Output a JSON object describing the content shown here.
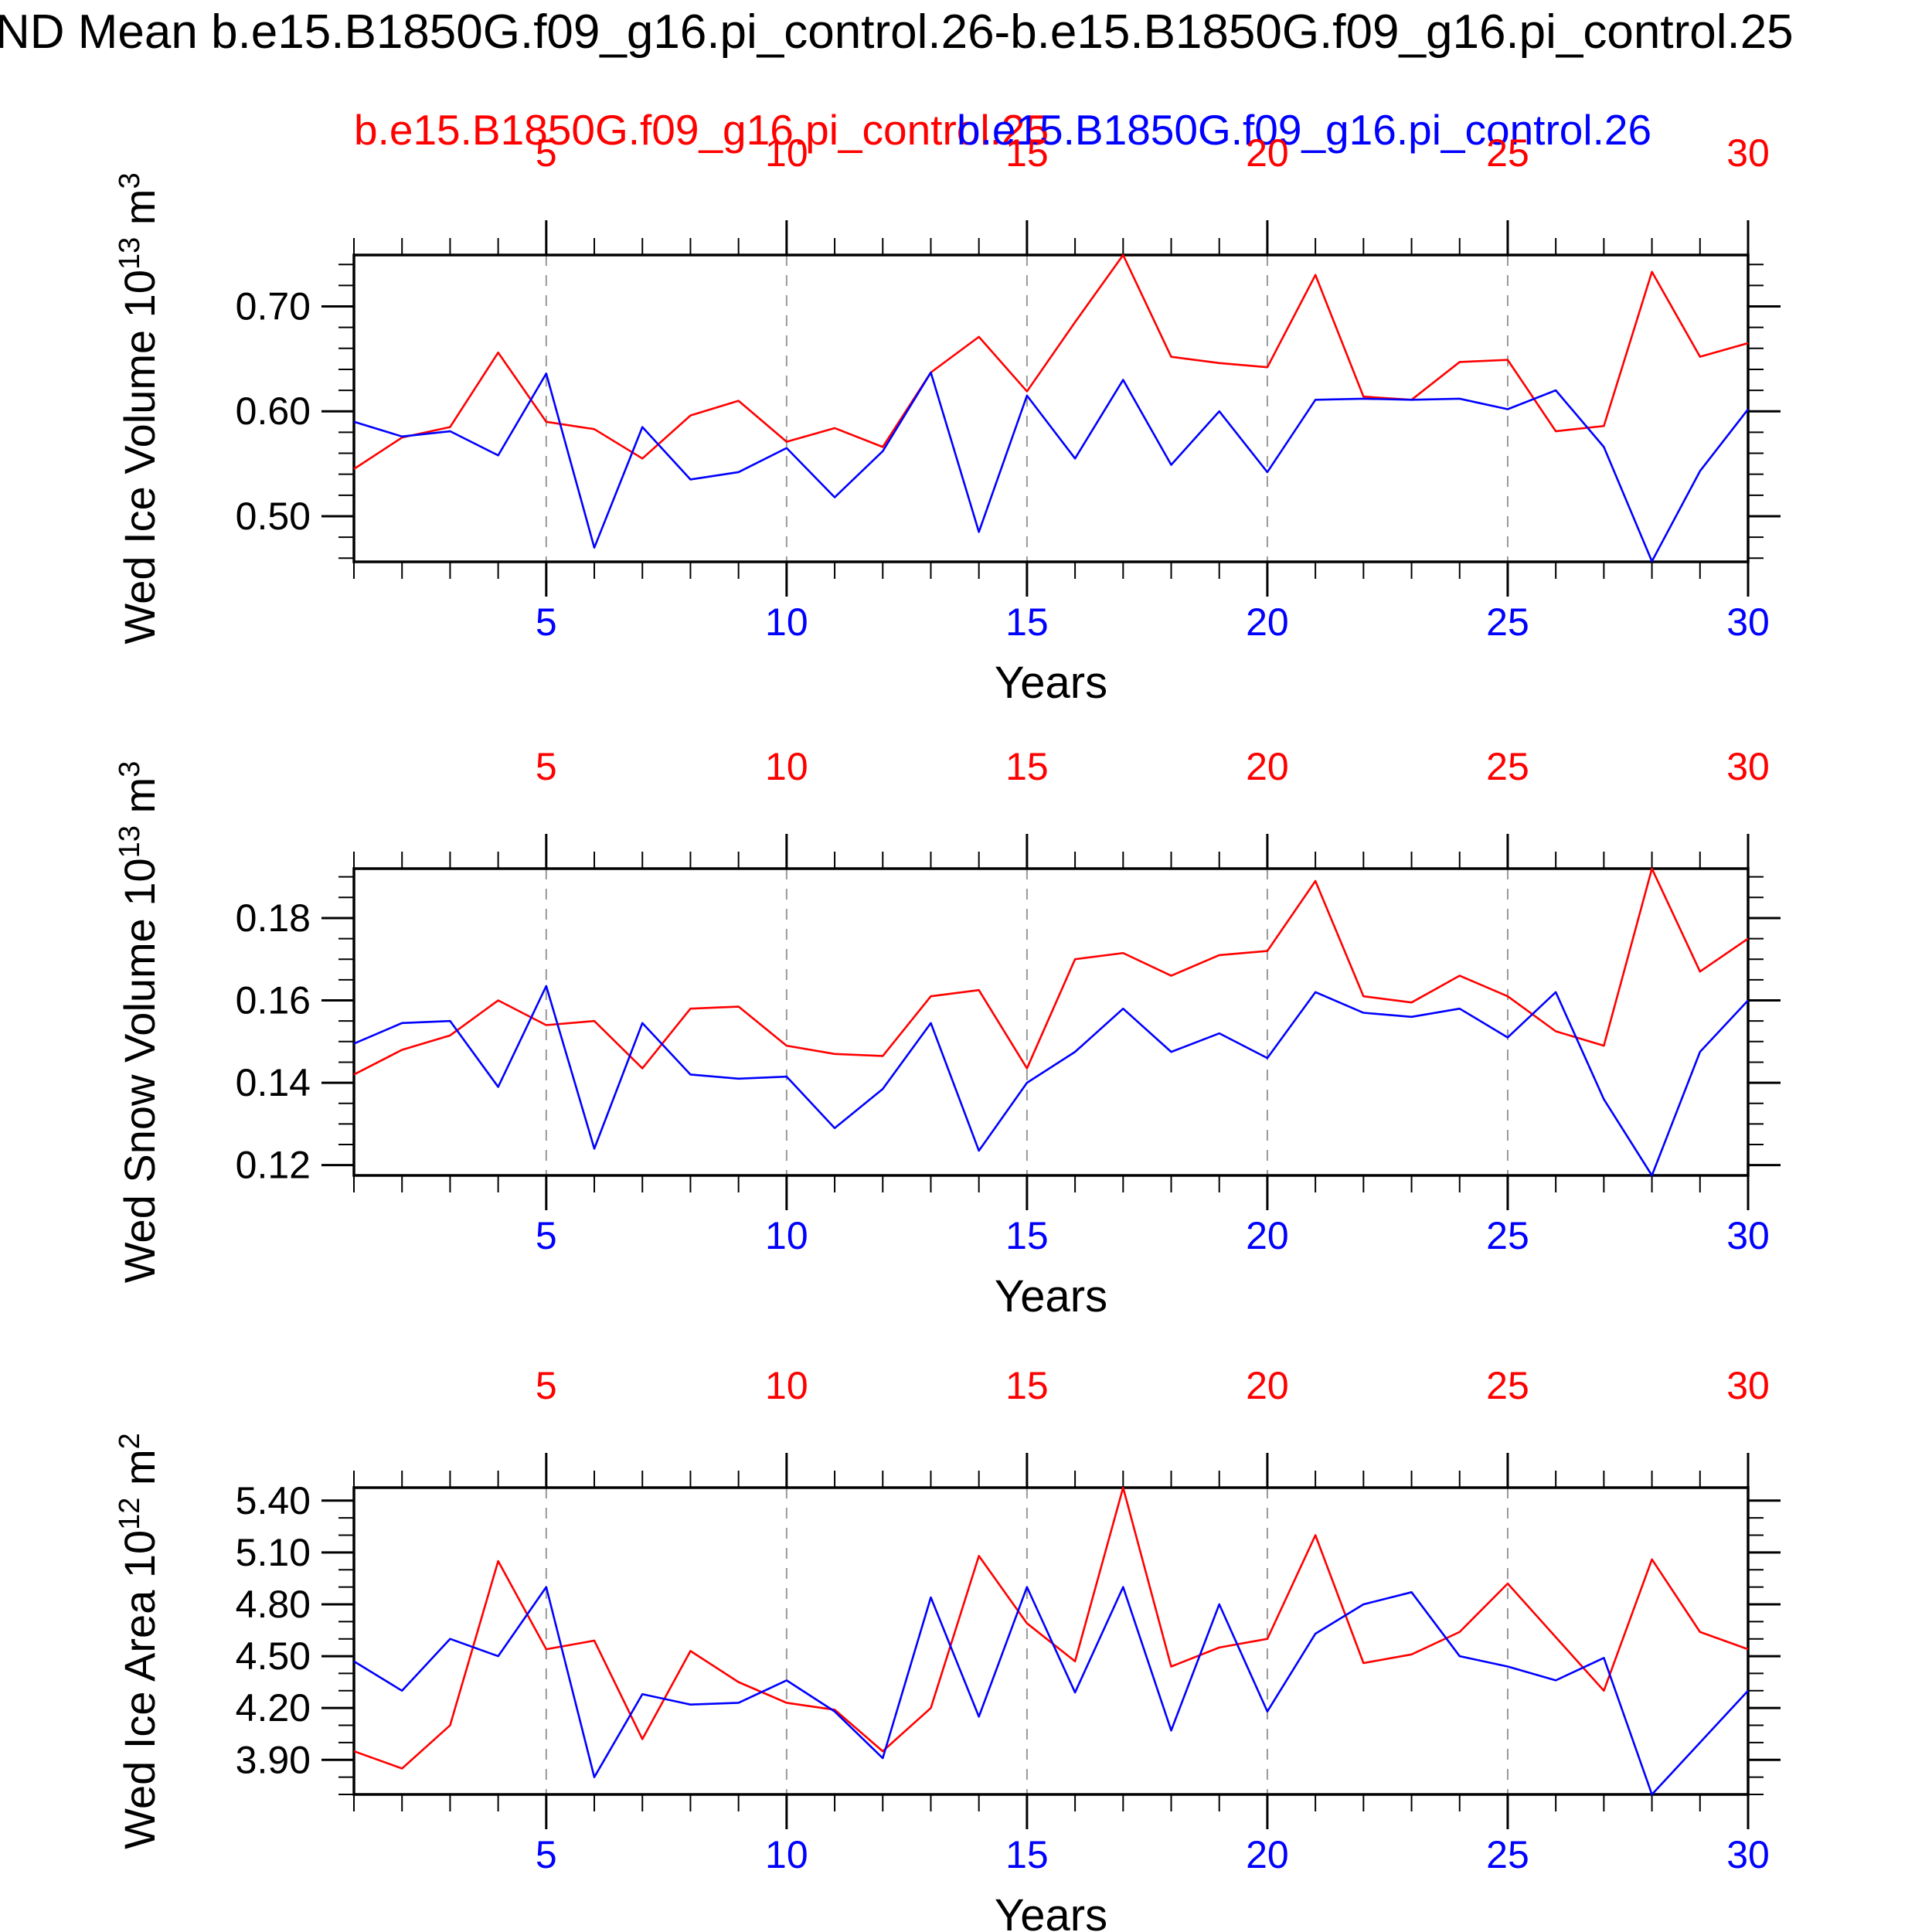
{
  "title": "ND Mean b.e15.B1850G.f09_g16.pi_control.26-b.e15.B1850G.f09_g16.pi_control.25",
  "legend": [
    {
      "label": "b.e15.B1850G.f09_g16.pi_control.25",
      "color": "#ff0000"
    },
    {
      "label": "b.e15.B1850G.f09_g16.pi_control.26",
      "color": "#0000ff"
    }
  ],
  "xaxis": {
    "label": "Years",
    "range": [
      1,
      30
    ],
    "ticks": [
      5,
      10,
      15,
      20,
      25,
      30
    ],
    "tick_labels": [
      "5",
      "10",
      "15",
      "20",
      "25",
      "30"
    ],
    "minor_step": 1,
    "grid": [
      5,
      10,
      15,
      20,
      25
    ],
    "top_label_color": "#ff0000",
    "bottom_label_color": "#0000ff"
  },
  "colors": {
    "series_red": "#ff0000",
    "series_blue": "#0000ff",
    "grid": "#999999",
    "axis": "#000000"
  },
  "chart_data": [
    {
      "type": "line",
      "ylabel": {
        "base": "Wed Ice Volume 10",
        "exp": "13",
        "unit": "m",
        "unit_exp": "3"
      },
      "ylim": [
        0.4565,
        0.749
      ],
      "yticks": [
        0.5,
        0.6,
        0.7
      ],
      "ytick_labels": [
        "0.50",
        "0.60",
        "0.70"
      ],
      "yminor_step": 0.02,
      "x": [
        1,
        2,
        3,
        4,
        5,
        6,
        7,
        8,
        9,
        10,
        11,
        12,
        13,
        14,
        15,
        16,
        17,
        18,
        19,
        20,
        21,
        22,
        23,
        24,
        25,
        26,
        27,
        28,
        29,
        30
      ],
      "grid_on": true,
      "legend_position": "top-overlapping",
      "series": [
        {
          "name": "b.e15.B1850G.f09_g16.pi_control.25",
          "color": "#ff0000",
          "values": [
            0.545,
            0.575,
            0.585,
            0.656,
            0.59,
            0.583,
            0.555,
            0.596,
            0.61,
            0.571,
            0.584,
            0.566,
            0.637,
            0.671,
            0.619,
            0.685,
            0.749,
            0.652,
            0.646,
            0.642,
            0.73,
            0.614,
            0.611,
            0.647,
            0.649,
            0.581,
            0.586,
            0.733,
            0.652,
            0.665
          ]
        },
        {
          "name": "b.e15.B1850G.f09_g16.pi_control.26",
          "color": "#0000ff",
          "values": [
            0.59,
            0.576,
            0.581,
            0.558,
            0.636,
            0.47,
            0.585,
            0.535,
            0.542,
            0.565,
            0.518,
            0.562,
            0.637,
            0.485,
            0.615,
            0.555,
            0.63,
            0.549,
            0.6,
            0.542,
            0.611,
            0.612,
            0.611,
            0.612,
            0.602,
            0.62,
            0.566,
            0.457,
            0.543,
            0.602
          ]
        }
      ]
    },
    {
      "type": "line",
      "ylabel": {
        "base": "Wed Snow Volume 10",
        "exp": "13",
        "unit": "m",
        "unit_exp": "3"
      },
      "ylim": [
        0.1175,
        0.192
      ],
      "yticks": [
        0.12,
        0.14,
        0.16,
        0.18
      ],
      "ytick_labels": [
        "0.12",
        "0.14",
        "0.16",
        "0.18"
      ],
      "yminor_step": 0.005,
      "x": [
        1,
        2,
        3,
        4,
        5,
        6,
        7,
        8,
        9,
        10,
        11,
        12,
        13,
        14,
        15,
        16,
        17,
        18,
        19,
        20,
        21,
        22,
        23,
        24,
        25,
        26,
        27,
        28,
        29,
        30
      ],
      "grid_on": true,
      "series": [
        {
          "name": "b.e15.B1850G.f09_g16.pi_control.25",
          "color": "#ff0000",
          "values": [
            0.142,
            0.148,
            0.1515,
            0.16,
            0.154,
            0.155,
            0.1435,
            0.158,
            0.1585,
            0.149,
            0.147,
            0.1465,
            0.161,
            0.1625,
            0.1435,
            0.17,
            0.1715,
            0.166,
            0.171,
            0.172,
            0.189,
            0.161,
            0.1595,
            0.166,
            0.161,
            0.1525,
            0.149,
            0.192,
            0.167,
            0.175
          ]
        },
        {
          "name": "b.e15.B1850G.f09_g16.pi_control.26",
          "color": "#0000ff",
          "values": [
            0.1495,
            0.1545,
            0.155,
            0.139,
            0.1635,
            0.124,
            0.1545,
            0.142,
            0.141,
            0.1415,
            0.129,
            0.1385,
            0.1545,
            0.1235,
            0.14,
            0.1475,
            0.158,
            0.1475,
            0.152,
            0.146,
            0.162,
            0.157,
            0.156,
            0.158,
            0.151,
            0.162,
            0.136,
            0.1175,
            0.1475,
            0.16
          ]
        }
      ]
    },
    {
      "type": "line",
      "ylabel": {
        "base": "Wed Ice Area 10",
        "exp": "12",
        "unit": "m",
        "unit_exp": "2"
      },
      "ylim": [
        3.7,
        5.475
      ],
      "yticks": [
        3.9,
        4.2,
        4.5,
        4.8,
        5.1,
        5.4
      ],
      "ytick_labels": [
        "3.90",
        "4.20",
        "4.50",
        "4.80",
        "5.10",
        "5.40"
      ],
      "yminor_step": 0.1,
      "x": [
        1,
        2,
        3,
        4,
        5,
        6,
        7,
        8,
        9,
        10,
        11,
        12,
        13,
        14,
        15,
        16,
        17,
        18,
        19,
        20,
        21,
        22,
        23,
        24,
        25,
        26,
        27,
        28,
        29,
        30
      ],
      "grid_on": true,
      "series": [
        {
          "name": "b.e15.B1850G.f09_g16.pi_control.25",
          "color": "#ff0000",
          "values": [
            3.95,
            3.85,
            4.1,
            5.05,
            4.54,
            4.59,
            4.02,
            4.53,
            4.35,
            4.23,
            4.19,
            3.95,
            4.2,
            5.08,
            4.69,
            4.47,
            5.475,
            4.44,
            4.55,
            4.6,
            5.2,
            4.46,
            4.51,
            4.64,
            4.92,
            4.61,
            4.3,
            5.06,
            4.64,
            4.54
          ]
        },
        {
          "name": "b.e15.B1850G.f09_g16.pi_control.26",
          "color": "#0000ff",
          "values": [
            4.47,
            4.3,
            4.6,
            4.5,
            4.9,
            3.8,
            4.28,
            4.22,
            4.23,
            4.36,
            4.18,
            3.91,
            4.84,
            4.15,
            4.9,
            4.29,
            4.9,
            4.07,
            4.8,
            4.18,
            4.63,
            4.8,
            4.87,
            4.5,
            4.44,
            4.36,
            4.49,
            3.7,
            4.0,
            4.3
          ]
        }
      ]
    }
  ]
}
